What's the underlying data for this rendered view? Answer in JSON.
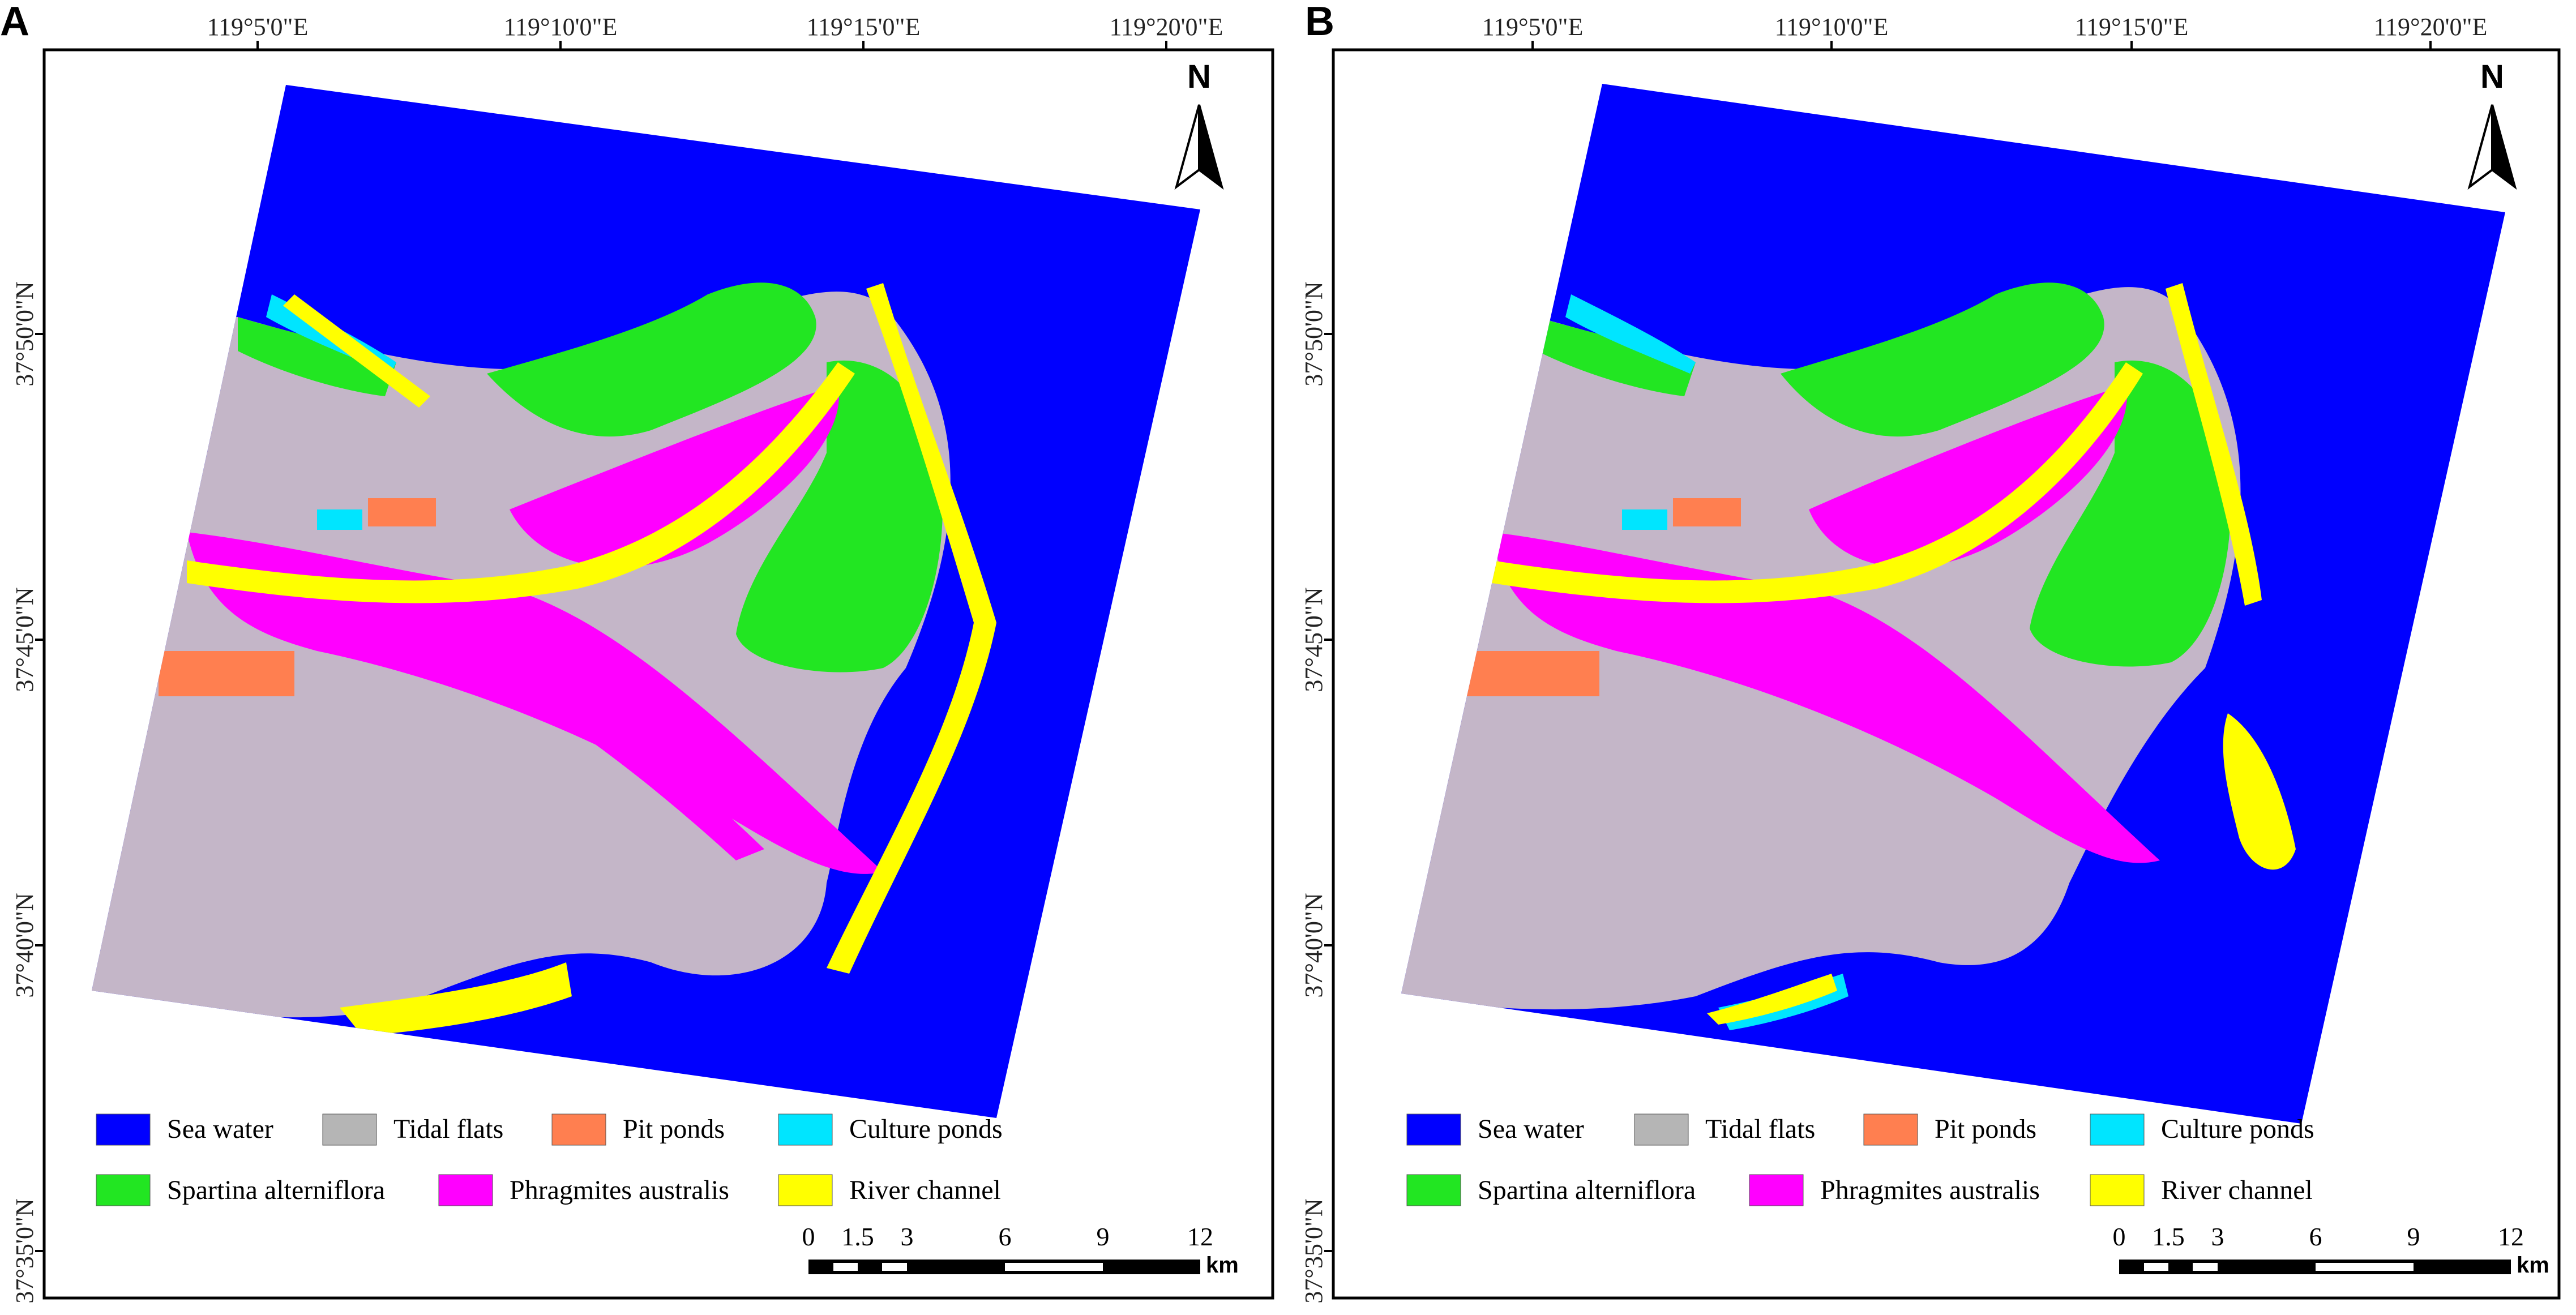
{
  "panels": [
    {
      "letter": "A",
      "lon_labels": [
        "119°5'0\"E",
        "119°10'0\"E",
        "119°15'0\"E",
        "119°20'0\"E"
      ],
      "lat_labels": [
        "37°50'0\"N",
        "37°45'0\"N",
        "37°40'0\"N",
        "37°35'0\"N"
      ],
      "north": "N",
      "scale_ticks": [
        "0",
        "1.5",
        "3",
        "6",
        "9",
        "12"
      ],
      "scale_unit": "km",
      "legend": [
        {
          "label": "Sea water",
          "color": "#0000ff"
        },
        {
          "label": "Tidal flats",
          "color": "#b5b5b5"
        },
        {
          "label": "Pit ponds",
          "color": "#ff7f50"
        },
        {
          "label": "Culture ponds",
          "color": "#00e5ff"
        },
        {
          "label": "Spartina alterniflora",
          "color": "#22e622"
        },
        {
          "label": "Phragmites australis",
          "color": "#ff00ff"
        },
        {
          "label": "River channel",
          "color": "#ffff00"
        }
      ]
    },
    {
      "letter": "B",
      "lon_labels": [
        "119°5'0\"E",
        "119°10'0\"E",
        "119°15'0\"E",
        "119°20'0\"E"
      ],
      "lat_labels": [
        "37°50'0\"N",
        "37°45'0\"N",
        "37°40'0\"N",
        "37°35'0\"N"
      ],
      "north": "N",
      "scale_ticks": [
        "0",
        "1.5",
        "3",
        "6",
        "9",
        "12"
      ],
      "scale_unit": "km",
      "legend": [
        {
          "label": "Sea water",
          "color": "#0000ff"
        },
        {
          "label": "Tidal flats",
          "color": "#b5b5b5"
        },
        {
          "label": "Pit ponds",
          "color": "#ff7f50"
        },
        {
          "label": "Culture ponds",
          "color": "#00e5ff"
        },
        {
          "label": "Spartina alterniflora",
          "color": "#22e622"
        },
        {
          "label": "Phragmites australis",
          "color": "#ff00ff"
        },
        {
          "label": "River channel",
          "color": "#ffff00"
        }
      ]
    }
  ],
  "colors": {
    "sea": "#0000ff",
    "tidal": "#c4b6c8",
    "pit": "#ff7f50",
    "culture": "#00e5ff",
    "spartina": "#22e622",
    "phragmites": "#ff00ff",
    "river": "#ffff00"
  }
}
